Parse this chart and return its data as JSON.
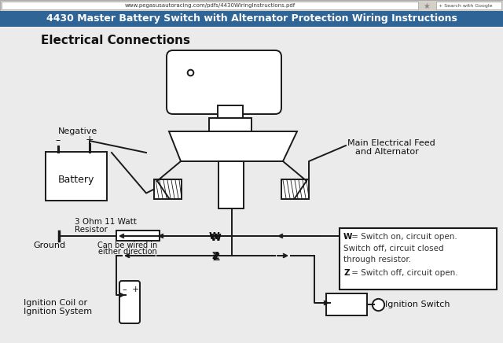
{
  "title_bar_text": "4430 Master Battery Switch with Alternator Protection Wiring Instructions",
  "title_bar_bg": "#2E6496",
  "title_bar_fg": "#FFFFFF",
  "browser_bar_bg": "#D4D0C8",
  "browser_url": "www.pegasusautoracing.com/pdfs/4430WiringInstructions.pdf",
  "page_bg": "#DCDCDC",
  "content_bg": "#F0F0F0",
  "section_title": "Electrical Connections",
  "legend_line1": "W = Switch on, circuit open.",
  "legend_line2": "Switch off, circuit closed",
  "legend_line3": "through resistor.",
  "legend_line4": "Z = Switch off, circuit open.",
  "label_negative": "Negative",
  "label_battery": "Battery",
  "label_resistor_line1": "3 Ohm 11 Watt",
  "label_resistor_line2": "Resistor",
  "label_ground": "Ground",
  "label_wire_dir_line1": "Can be wired in",
  "label_wire_dir_line2": "either direction",
  "label_main_feed_line1": "Main Electrical Feed",
  "label_main_feed_line2": "and Alternator",
  "label_ignition_coil_line1": "Ignition Coil or",
  "label_ignition_coil_line2": "Ignition System",
  "label_ignition_switch": "Ignition Switch",
  "lc": "#1A1A1A",
  "lw": 1.4,
  "thin_lw": 0.8
}
